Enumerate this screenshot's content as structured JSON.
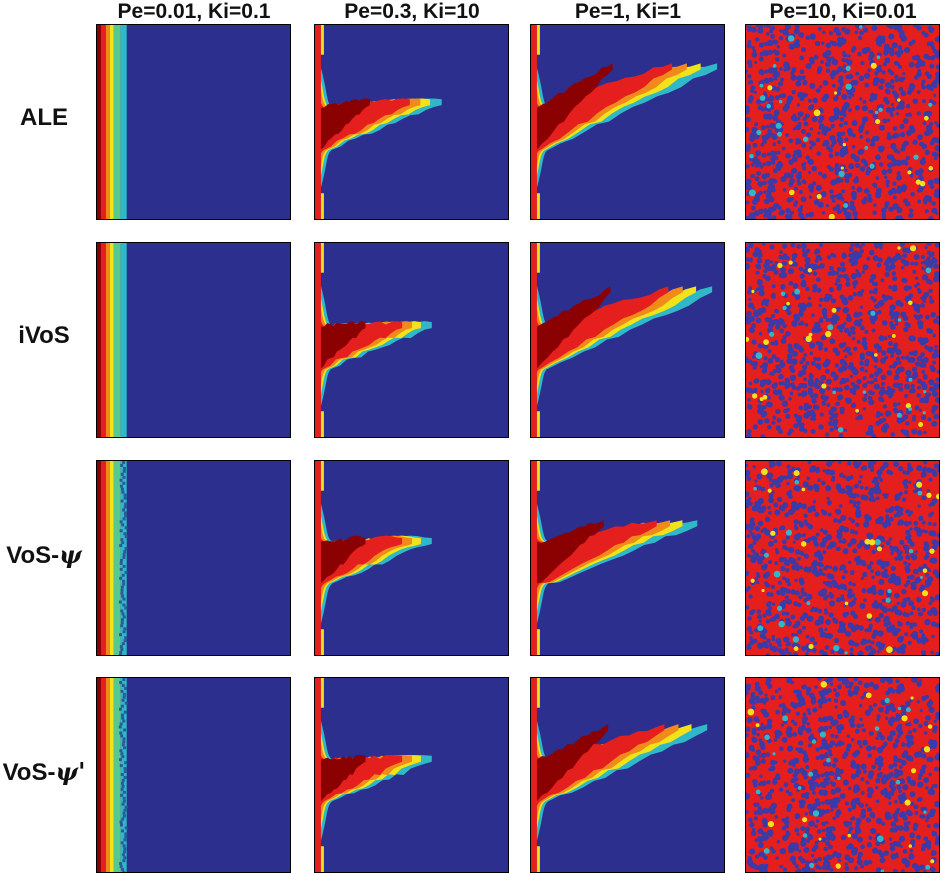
{
  "columns": [
    {
      "label": "Pe=0.01, Ki=0.1",
      "pattern": "flat-front"
    },
    {
      "label": "Pe=0.3, Ki=10",
      "pattern": "single-finger"
    },
    {
      "label": "Pe=1, Ki=1",
      "pattern": "long-finger"
    },
    {
      "label": "Pe=10, Ki=0.01",
      "pattern": "noisy"
    }
  ],
  "rows": [
    {
      "label": "ALE",
      "symbol": ""
    },
    {
      "label": "iVoS",
      "symbol": ""
    },
    {
      "label": "VoS-",
      "symbol": "ψ"
    },
    {
      "label": "VoS-",
      "symbol": "ψ'"
    }
  ],
  "colors": {
    "background_blue": "#2d2f8f",
    "red": "#e51e1e",
    "dark_red": "#8b0000",
    "orange": "#f08a1a",
    "yellow": "#f2e21a",
    "cyan": "#2fb8c8",
    "noise_blue": "#3a3aa8"
  }
}
